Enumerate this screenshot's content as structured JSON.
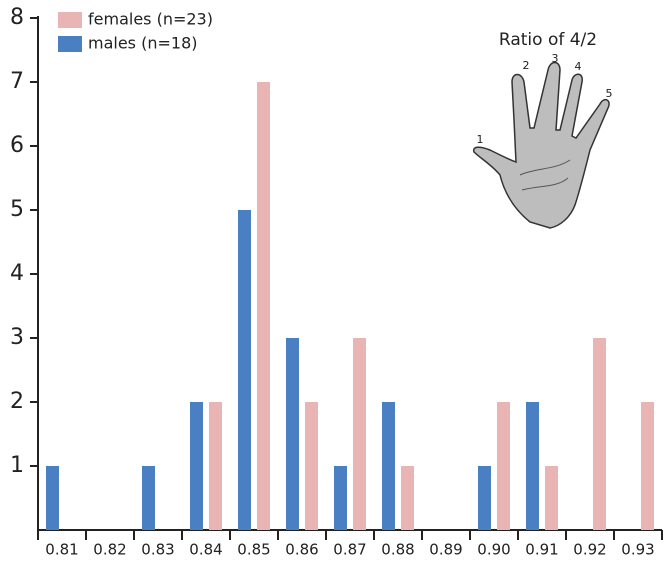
{
  "chart_data": {
    "type": "bar",
    "annotation": "Ratio of 4/2",
    "finger_labels": [
      "1",
      "2",
      "3",
      "4",
      "5"
    ],
    "categories": [
      "0.81",
      "0.82",
      "0.83",
      "0.84",
      "0.85",
      "0.86",
      "0.87",
      "0.88",
      "0.89",
      "0.90",
      "0.91",
      "0.92",
      "0.93"
    ],
    "series": [
      {
        "name": "males (n=18)",
        "color": "#4a7fc1",
        "values": [
          1,
          0,
          1,
          2,
          5,
          3,
          1,
          2,
          0,
          1,
          2,
          0,
          0
        ]
      },
      {
        "name": "females (n=23)",
        "color": "#e8b4b4",
        "values": [
          0,
          0,
          0,
          2,
          7,
          2,
          3,
          1,
          0,
          2,
          1,
          3,
          2
        ]
      }
    ],
    "ylim": [
      0,
      8
    ],
    "yticks": [
      1,
      2,
      3,
      4,
      5,
      6,
      7,
      8
    ]
  }
}
